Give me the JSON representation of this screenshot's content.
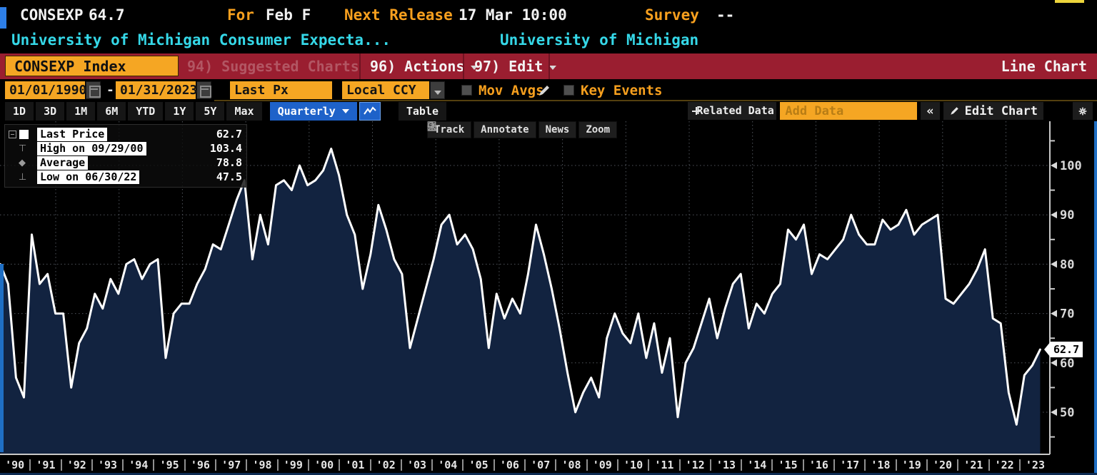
{
  "header": {
    "ticker": "CONSEXP",
    "last_value": "64.7",
    "for_label": "For",
    "for_value": "Feb F",
    "next_release_label": "Next Release",
    "next_release_value": "17 Mar 10:00",
    "survey_label": "Survey",
    "survey_value": "--",
    "security_name": "University of Michigan Consumer Expecta...",
    "source_name": "University of Michigan"
  },
  "menu_bar": {
    "security_button": "CONSEXP Index",
    "suggested_charts": "94) Suggested Charts",
    "actions": "96) Actions",
    "edit": "97) Edit",
    "chart_type": "Line Chart"
  },
  "settings_bar": {
    "date_from": "01/01/1990",
    "date_separator": "-",
    "date_to": "01/31/2023",
    "field": "Last Px",
    "currency": "Local CCY",
    "mov_avgs": "Mov Avgs",
    "key_events": "Key Events"
  },
  "toolbar": {
    "ranges": [
      "1D",
      "3D",
      "1M",
      "6M",
      "YTD",
      "1Y",
      "5Y",
      "Max"
    ],
    "period": "Quarterly",
    "table": "Table",
    "related_data": "Related Data",
    "add_data_placeholder": "Add Data",
    "collapse": "«",
    "edit_chart": "Edit Chart"
  },
  "chart_toolbar": {
    "track": "Track",
    "annotate": "Annotate",
    "news": "News",
    "zoom": "Zoom"
  },
  "legend": {
    "rows": [
      {
        "icon": "",
        "label": "Last Price",
        "value": "62.7"
      },
      {
        "icon": "⊤",
        "label": "High on 09/29/00",
        "value": "103.4"
      },
      {
        "icon": "◆",
        "label": "Average",
        "value": "78.8"
      },
      {
        "icon": "⊥",
        "label": "Low on 06/30/22",
        "value": "47.5"
      }
    ]
  },
  "price_tag": "62.7",
  "colors": {
    "accent_orange": "#f5a623",
    "orange_text": "#f8a01e",
    "cyan_text": "#35d8e8",
    "menubar_red": "#9a1e30",
    "button_blue": "#1e62c9",
    "area_fill": "#122340",
    "line": "#ffffff",
    "panel_edge_blue": "#1f6fc4",
    "grid": "#50555c",
    "axis": "#c8c8c8"
  },
  "chart_data": {
    "type": "area",
    "title": "CONSEXP Index - University of Michigan Consumer Expectations (Quarterly)",
    "x_start_year": 1990.25,
    "x_step_years": 0.25,
    "x_end_year": 2023.08,
    "x_tick_labels": [
      "'90",
      "'91",
      "'92",
      "'93",
      "'94",
      "'95",
      "'96",
      "'97",
      "'98",
      "'99",
      "'00",
      "'01",
      "'02",
      "'03",
      "'04",
      "'05",
      "'06",
      "'07",
      "'08",
      "'09",
      "'10",
      "'11",
      "'12",
      "'13",
      "'14",
      "'15",
      "'16",
      "'17",
      "'18",
      "'19",
      "'20",
      "'21",
      "'22",
      "'23"
    ],
    "y_ticks": [
      50,
      60,
      70,
      80,
      90,
      100
    ],
    "y_minor_step": 5,
    "ylim_visible": [
      41.5,
      109
    ],
    "grid": true,
    "legend_position": "top-left",
    "last_price": 62.7,
    "high": {
      "date": "09/29/00",
      "value": 103.4
    },
    "average": 78.8,
    "low": {
      "date": "06/30/22",
      "value": 47.5
    },
    "values": [
      80,
      76,
      57,
      53,
      86,
      76,
      78,
      70,
      70,
      55,
      64,
      67,
      74,
      71,
      77,
      74,
      80,
      81,
      77,
      80,
      81,
      61,
      70,
      72,
      72,
      76,
      79,
      84,
      83,
      88,
      93,
      97,
      81,
      90,
      84,
      96,
      97,
      95,
      100,
      96,
      97,
      99,
      103.4,
      98,
      90,
      86,
      75,
      82,
      92,
      87,
      81,
      78,
      63,
      69,
      75,
      81,
      88,
      90,
      84,
      86,
      83,
      77,
      63,
      74,
      69,
      73,
      70,
      78,
      88,
      82,
      75,
      67,
      58,
      50,
      54,
      57,
      53,
      65,
      70,
      66,
      64,
      70,
      61,
      68,
      58,
      65,
      49,
      60,
      63,
      68,
      73,
      65,
      71,
      76,
      78,
      67,
      72,
      70,
      74,
      76,
      87,
      85,
      88,
      78,
      82,
      81,
      83,
      85,
      90,
      86,
      84,
      84,
      89,
      87,
      88,
      91,
      86,
      88,
      89,
      90,
      73,
      72,
      74,
      76,
      79,
      83,
      69,
      68,
      54,
      47.5,
      57.5,
      59.5,
      62.7
    ]
  }
}
